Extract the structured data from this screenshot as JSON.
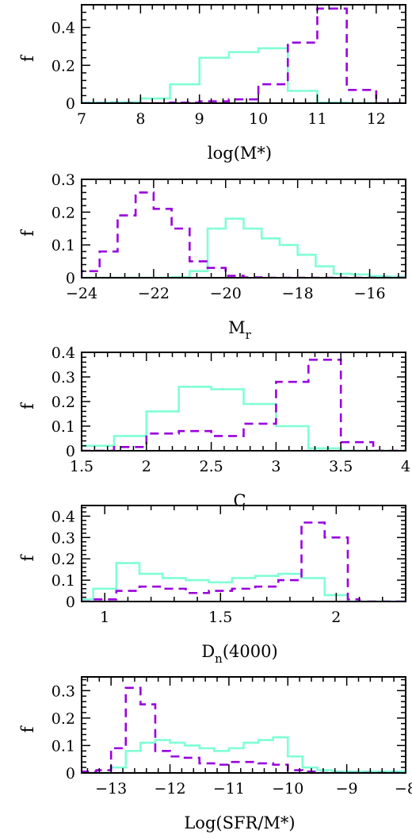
{
  "colors": {
    "series_a": "#7fffd4",
    "series_b": "#9900dd",
    "axes": "#000000"
  },
  "chart_data": [
    {
      "type": "histogram",
      "xlabel": "log(M*)",
      "ylabel": "f",
      "xlim": [
        7,
        12.5
      ],
      "ylim": [
        0,
        0.52
      ],
      "xticks": [
        7,
        8,
        9,
        10,
        11,
        12
      ],
      "xtick_labels": [
        "7",
        "8",
        "9",
        "10",
        "11",
        "12"
      ],
      "yticks": [
        0,
        0.2,
        0.4
      ],
      "ytick_labels": [
        "0",
        "0.2",
        "0.4"
      ],
      "bin_edges": [
        7,
        7.5,
        8,
        8.5,
        9,
        9.5,
        10,
        10.5,
        11,
        11.5,
        12,
        12.5
      ],
      "series": [
        {
          "style": "solid",
          "color": "#7fffd4",
          "values": [
            0.003,
            0.005,
            0.025,
            0.1,
            0.24,
            0.27,
            0.29,
            0.065,
            0.003,
            0.001,
            0.0
          ]
        },
        {
          "style": "dashed",
          "color": "#9900dd",
          "values": [
            0.0,
            0.0,
            0.0,
            0.003,
            0.01,
            0.02,
            0.1,
            0.32,
            0.5,
            0.07,
            0.0
          ]
        }
      ]
    },
    {
      "type": "histogram",
      "xlabel": "M",
      "xlabel_sub": "r",
      "ylabel": "f",
      "xlim": [
        -24,
        -15
      ],
      "ylim": [
        0,
        0.3
      ],
      "xticks": [
        -24,
        -22,
        -20,
        -18,
        -16
      ],
      "xtick_labels": [
        "−24",
        "−22",
        "−20",
        "−18",
        "−16"
      ],
      "yticks": [
        0,
        0.1,
        0.2,
        0.3
      ],
      "ytick_labels": [
        "0",
        "0.1",
        "0.2",
        "0.3"
      ],
      "bin_edges": [
        -24,
        -23.5,
        -23,
        -22.5,
        -22,
        -21.5,
        -21,
        -20.5,
        -20,
        -19.5,
        -19,
        -18.5,
        -18,
        -17.5,
        -17,
        -16.5,
        -16,
        -15.5,
        -15
      ],
      "series": [
        {
          "style": "solid",
          "color": "#7fffd4",
          "values": [
            0.0,
            0.0,
            0.0,
            0.0,
            0.0,
            0.002,
            0.02,
            0.15,
            0.18,
            0.15,
            0.12,
            0.1,
            0.07,
            0.035,
            0.012,
            0.01,
            0.005,
            0.003
          ]
        },
        {
          "style": "dashed",
          "color": "#9900dd",
          "values": [
            0.02,
            0.08,
            0.19,
            0.26,
            0.21,
            0.15,
            0.05,
            0.03,
            0.006,
            0.001,
            0.0,
            0.0,
            0.0,
            0.0,
            0.0,
            0.0,
            0.0,
            0.0
          ]
        }
      ]
    },
    {
      "type": "histogram",
      "xlabel": "C",
      "ylabel": "f",
      "xlim": [
        1.5,
        4
      ],
      "ylim": [
        0,
        0.4
      ],
      "xticks": [
        1.5,
        2,
        2.5,
        3,
        3.5,
        4
      ],
      "xtick_labels": [
        "1.5",
        "2",
        "2.5",
        "3",
        "3.5",
        "4"
      ],
      "yticks": [
        0,
        0.1,
        0.2,
        0.3,
        0.4
      ],
      "ytick_labels": [
        "0",
        "0.1",
        "0.2",
        "0.3",
        "0.4"
      ],
      "bin_edges": [
        1.5,
        1.75,
        2,
        2.25,
        2.5,
        2.75,
        3,
        3.25,
        3.5,
        3.75,
        4
      ],
      "series": [
        {
          "style": "solid",
          "color": "#7fffd4",
          "values": [
            0.02,
            0.06,
            0.16,
            0.26,
            0.25,
            0.19,
            0.1,
            0.01,
            0.0,
            0.0
          ]
        },
        {
          "style": "dashed",
          "color": "#9900dd",
          "values": [
            0.0,
            0.015,
            0.07,
            0.08,
            0.06,
            0.11,
            0.28,
            0.37,
            0.035,
            0.0
          ]
        }
      ]
    },
    {
      "type": "histogram",
      "xlabel": "D",
      "xlabel_sub": "n",
      "xlabel_suffix": "(4000)",
      "ylabel": "f",
      "xlim": [
        0.9,
        2.3
      ],
      "ylim": [
        0,
        0.45
      ],
      "xticks": [
        1,
        1.5,
        2
      ],
      "xtick_labels": [
        "1",
        "1.5",
        "2"
      ],
      "yticks": [
        0,
        0.1,
        0.2,
        0.3,
        0.4
      ],
      "ytick_labels": [
        "0",
        "0.1",
        "0.2",
        "0.3",
        "0.4"
      ],
      "bin_edges": [
        0.9,
        0.95,
        1.05,
        1.15,
        1.25,
        1.35,
        1.45,
        1.55,
        1.65,
        1.75,
        1.85,
        1.95,
        2.05,
        2.1,
        2.3
      ],
      "series": [
        {
          "style": "solid",
          "color": "#7fffd4",
          "values": [
            0.01,
            0.06,
            0.18,
            0.13,
            0.11,
            0.1,
            0.09,
            0.11,
            0.12,
            0.13,
            0.11,
            0.03,
            0.0,
            0.0
          ]
        },
        {
          "style": "dashed",
          "color": "#9900dd",
          "values": [
            0.0,
            0.01,
            0.05,
            0.07,
            0.06,
            0.04,
            0.05,
            0.06,
            0.07,
            0.1,
            0.37,
            0.3,
            0.01,
            0.0
          ]
        }
      ]
    },
    {
      "type": "histogram",
      "xlabel": "Log(SFR/M*)",
      "ylabel": "f",
      "xlim": [
        -13.5,
        -8
      ],
      "ylim": [
        0,
        0.35
      ],
      "xticks": [
        -13,
        -12,
        -11,
        -10,
        -9,
        -8
      ],
      "xtick_labels": [
        "−13",
        "−12",
        "−11",
        "−10",
        "−9",
        "−8"
      ],
      "yticks": [
        0,
        0.1,
        0.2,
        0.3
      ],
      "ytick_labels": [
        "0",
        "0.1",
        "0.2",
        "0.3"
      ],
      "bin_edges": [
        -13.5,
        -13.25,
        -13,
        -12.75,
        -12.5,
        -12.25,
        -12,
        -11.75,
        -11.5,
        -11.25,
        -11,
        -10.75,
        -10.5,
        -10.25,
        -10,
        -9.75,
        -9.5,
        -9.25,
        -9,
        -8.75,
        -8.5,
        -8.25,
        -8
      ],
      "series": [
        {
          "style": "solid",
          "color": "#7fffd4",
          "values": [
            0.0,
            0.0,
            0.02,
            0.08,
            0.11,
            0.12,
            0.11,
            0.1,
            0.09,
            0.08,
            0.09,
            0.11,
            0.12,
            0.13,
            0.06,
            0.02,
            0.01,
            0.005,
            0.005,
            0.005,
            0.005,
            0.005
          ]
        },
        {
          "style": "dashed",
          "color": "#9900dd",
          "values": [
            0.005,
            0.01,
            0.09,
            0.31,
            0.25,
            0.08,
            0.06,
            0.055,
            0.035,
            0.03,
            0.04,
            0.04,
            0.035,
            0.03,
            0.01,
            0.005,
            0.0,
            0.0,
            0.0,
            0.0,
            0.0,
            0.0
          ]
        }
      ]
    }
  ]
}
